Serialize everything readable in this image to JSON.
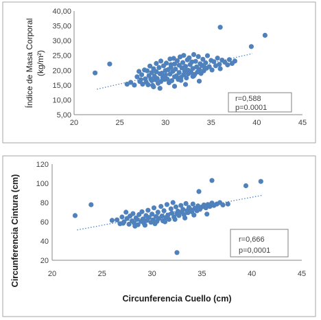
{
  "chart_data": [
    {
      "type": "scatter",
      "title": "",
      "xlabel": "",
      "ylabel": "Índice de Masa Corporal",
      "ylabel_unit": "(kg/m²)",
      "xlim": [
        20,
        45
      ],
      "ylim": [
        5,
        40
      ],
      "x_ticks": [
        "20",
        "25",
        "30",
        "35",
        "40",
        "45"
      ],
      "y_ticks": [
        "5,00",
        "10,00",
        "15,00",
        "20,00",
        "25,00",
        "30,00",
        "35,00",
        "40,00"
      ],
      "color": "#4f81bd",
      "grid": false,
      "annotation": {
        "r": "r=0,588",
        "p": "p=0.0001"
      },
      "trendline": {
        "x": [
          22.5,
          39.5
        ],
        "y": [
          13.6,
          25.6
        ]
      },
      "x": [
        22.3,
        23.9,
        25.8,
        26.2,
        26.6,
        26.9,
        27.1,
        27.2,
        27.4,
        27.5,
        27.7,
        27.8,
        27.9,
        28.0,
        28.1,
        28.2,
        28.3,
        28.4,
        28.5,
        28.5,
        28.6,
        28.7,
        28.8,
        28.9,
        29.0,
        29.0,
        29.1,
        29.2,
        29.3,
        29.4,
        29.5,
        29.5,
        29.6,
        29.7,
        29.8,
        29.9,
        30.0,
        30.0,
        30.1,
        30.2,
        30.3,
        30.4,
        30.5,
        30.5,
        30.6,
        30.7,
        30.8,
        30.9,
        31.0,
        31.0,
        31.1,
        31.2,
        31.3,
        31.4,
        31.5,
        31.5,
        31.6,
        31.7,
        31.8,
        31.9,
        32.0,
        32.0,
        32.1,
        32.2,
        32.3,
        32.4,
        32.5,
        32.5,
        32.6,
        32.7,
        32.8,
        32.9,
        33.0,
        33.0,
        33.1,
        33.2,
        33.3,
        33.4,
        33.5,
        33.6,
        33.7,
        33.8,
        33.9,
        34.0,
        34.1,
        34.2,
        34.4,
        34.5,
        34.6,
        34.8,
        35.0,
        35.1,
        35.3,
        35.5,
        35.7,
        35.9,
        36.0,
        36.2,
        36.5,
        36.8,
        37.0,
        37.3,
        37.6,
        39.4,
        40.9,
        36.0,
        28.7,
        29.4,
        31.0,
        32.2,
        33.7,
        27.3,
        29.8,
        30.6,
        31.7,
        33.1,
        34.3
      ],
      "y": [
        19.1,
        22.1,
        15.3,
        15.9,
        15.0,
        17.8,
        19.6,
        16.2,
        18.5,
        15.3,
        20.1,
        17.1,
        16.0,
        19.8,
        15.1,
        18.2,
        21.4,
        17.0,
        16.5,
        19.2,
        14.9,
        20.5,
        18.0,
        16.8,
        22.3,
        19.5,
        17.2,
        15.6,
        20.9,
        18.8,
        16.2,
        23.1,
        19.0,
        17.5,
        21.5,
        16.9,
        19.9,
        18.3,
        22.4,
        17.0,
        20.2,
        15.8,
        23.8,
        18.7,
        21.0,
        16.5,
        19.6,
        24.0,
        17.8,
        22.1,
        20.4,
        18.1,
        23.2,
        16.9,
        21.7,
        19.2,
        24.5,
        17.6,
        20.8,
        22.6,
        18.5,
        25.0,
        19.7,
        21.3,
        17.4,
        23.5,
        20.0,
        18.8,
        24.2,
        21.9,
        19.3,
        22.8,
        17.9,
        20.6,
        25.3,
        18.6,
        23.0,
        21.1,
        19.4,
        24.6,
        20.3,
        22.2,
        18.9,
        21.6,
        23.7,
        19.8,
        22.5,
        20.7,
        24.9,
        21.2,
        23.3,
        20.1,
        22.9,
        21.5,
        24.1,
        22.0,
        20.5,
        23.4,
        22.7,
        21.8,
        23.6,
        22.3,
        23.1,
        28.0,
        31.8,
        34.5,
        14.4,
        13.9,
        14.6,
        15.2,
        16.3,
        16.8,
        17.3,
        21.9,
        16.6,
        18.1,
        20.9
      ]
    },
    {
      "type": "scatter",
      "title": "",
      "xlabel": "Circunferencia Cuello (cm)",
      "ylabel": "Circunferencia Cintura (cm)",
      "xlim": [
        20,
        45
      ],
      "ylim": [
        20,
        120
      ],
      "x_ticks": [
        "20",
        "25",
        "30",
        "35",
        "40",
        "45"
      ],
      "y_ticks": [
        "20",
        "40",
        "60",
        "80",
        "100",
        "120"
      ],
      "color": "#4f81bd",
      "grid": false,
      "annotation": {
        "r": "r=0,666",
        "p": "p=0,0001"
      },
      "trendline": {
        "x": [
          22.5,
          41.0
        ],
        "y": [
          51.5,
          87.5
        ]
      },
      "x": [
        22.3,
        23.9,
        26.0,
        26.5,
        26.8,
        27.0,
        27.2,
        27.4,
        27.5,
        27.7,
        27.8,
        28.0,
        28.1,
        28.2,
        28.4,
        28.5,
        28.6,
        28.7,
        28.9,
        29.0,
        29.1,
        29.2,
        29.4,
        29.5,
        29.6,
        29.7,
        29.9,
        30.0,
        30.1,
        30.2,
        30.4,
        30.5,
        30.6,
        30.7,
        30.9,
        31.0,
        31.1,
        31.2,
        31.4,
        31.5,
        31.6,
        31.7,
        31.9,
        32.0,
        32.1,
        32.2,
        32.4,
        32.5,
        32.6,
        32.7,
        32.9,
        33.0,
        33.1,
        33.2,
        33.4,
        33.5,
        33.6,
        33.7,
        33.9,
        34.0,
        34.1,
        34.3,
        34.5,
        34.6,
        34.8,
        35.0,
        35.2,
        35.4,
        35.6,
        35.8,
        36.0,
        36.2,
        36.5,
        36.8,
        37.1,
        37.6,
        39.4,
        40.9,
        36.0,
        34.7,
        32.5,
        27.1,
        28.3,
        29.3,
        30.3,
        31.3,
        32.3,
        33.3,
        34.2,
        35.5
      ],
      "y": [
        66.5,
        77.8,
        61.5,
        62.0,
        58.0,
        65.0,
        60.0,
        70.0,
        63.5,
        57.5,
        66.0,
        61.0,
        68.5,
        59.0,
        64.0,
        62.5,
        57.0,
        67.5,
        60.5,
        70.5,
        63.0,
        58.5,
        66.5,
        61.5,
        72.0,
        64.5,
        59.5,
        68.0,
        62.0,
        74.5,
        65.5,
        60.5,
        70.0,
        63.5,
        76.0,
        66.0,
        61.0,
        71.5,
        64.5,
        78.0,
        67.0,
        62.5,
        73.5,
        69.0,
        80.0,
        65.0,
        75.5,
        68.5,
        71.0,
        66.5,
        77.0,
        70.0,
        73.0,
        67.5,
        79.0,
        71.5,
        69.5,
        75.0,
        72.5,
        70.5,
        78.5,
        74.0,
        71.5,
        76.5,
        73.0,
        75.5,
        77.5,
        74.5,
        78.0,
        76.0,
        79.5,
        77.0,
        78.5,
        80.0,
        77.5,
        78.5,
        97.5,
        102.0,
        103.0,
        91.5,
        28.0,
        58.5,
        55.5,
        56.5,
        58.0,
        60.0,
        62.5,
        64.0,
        67.0,
        68.0
      ]
    }
  ]
}
